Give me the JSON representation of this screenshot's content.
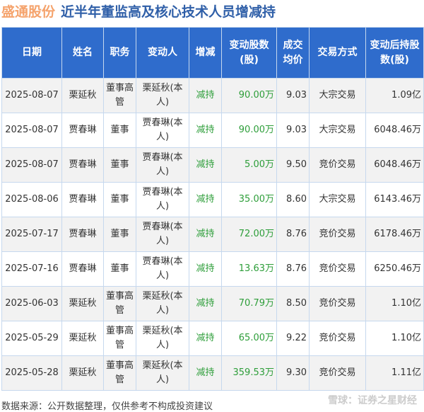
{
  "title": {
    "company": "盛通股份",
    "text": "近半年董监高及核心技术人员增减持"
  },
  "headers": [
    "日期",
    "姓名",
    "职务",
    "变动人",
    "增减",
    "变动股数(股)",
    "成交均价",
    "交易方式",
    "变动后持股数(股)"
  ],
  "rows": [
    [
      "2025-08-07",
      "栗延秋",
      "董事高管",
      "栗延秋(本人)",
      "减持",
      "90.00万",
      "9.03",
      "大宗交易",
      "1.09亿"
    ],
    [
      "2025-08-07",
      "贾春琳",
      "董事",
      "贾春琳(本人)",
      "减持",
      "90.00万",
      "9.03",
      "大宗交易",
      "6048.46万"
    ],
    [
      "2025-08-07",
      "贾春琳",
      "董事",
      "贾春琳(本人)",
      "减持",
      "5.00万",
      "9.50",
      "竞价交易",
      "6048.46万"
    ],
    [
      "2025-08-06",
      "贾春琳",
      "董事",
      "贾春琳(本人)",
      "减持",
      "35.00万",
      "8.60",
      "大宗交易",
      "6143.46万"
    ],
    [
      "2025-07-17",
      "贾春琳",
      "董事",
      "贾春琳(本人)",
      "减持",
      "72.00万",
      "8.76",
      "竞价交易",
      "6178.46万"
    ],
    [
      "2025-07-16",
      "贾春琳",
      "董事",
      "贾春琳(本人)",
      "减持",
      "13.63万",
      "8.76",
      "竞价交易",
      "6250.46万"
    ],
    [
      "2025-06-03",
      "栗延秋",
      "董事高管",
      "栗延秋(本人)",
      "减持",
      "70.79万",
      "8.50",
      "竞价交易",
      "1.10亿"
    ],
    [
      "2025-05-29",
      "栗延秋",
      "董事高管",
      "栗延秋(本人)",
      "减持",
      "65.00万",
      "9.22",
      "竞价交易",
      "1.10亿"
    ],
    [
      "2025-05-28",
      "栗延秋",
      "董事高管",
      "栗延秋(本人)",
      "减持",
      "359.53万",
      "9.30",
      "竞价交易",
      "1.11亿"
    ]
  ],
  "footer": "数据来源：公开数据整理，仅供参考不构成投资建议",
  "watermark": "雪球：证券之星财经",
  "colors": {
    "header": "#2f6ccc",
    "decrease": "#2e9e3a",
    "company": "#f5a36c",
    "title": "#2f5fa8"
  }
}
